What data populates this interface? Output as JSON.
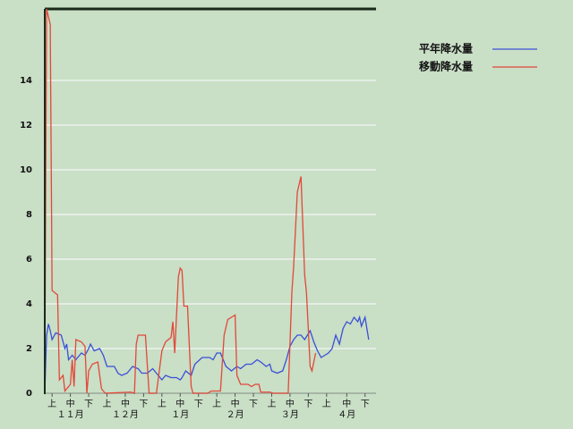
{
  "chart_data": {
    "type": "line",
    "xlim": [
      0,
      181
    ],
    "ylim": [
      0,
      17.2
    ],
    "yticks": [
      0,
      2,
      4,
      6,
      8,
      10,
      12,
      14
    ],
    "xticks": [
      {
        "value": 4,
        "label": "上"
      },
      {
        "value": 14,
        "label": "中"
      },
      {
        "value": 24,
        "label": "下"
      },
      {
        "value": 34,
        "label": "上"
      },
      {
        "value": 44,
        "label": "中"
      },
      {
        "value": 54,
        "label": "下"
      },
      {
        "value": 64,
        "label": "上"
      },
      {
        "value": 74,
        "label": "中"
      },
      {
        "value": 84,
        "label": "下"
      },
      {
        "value": 94,
        "label": "上"
      },
      {
        "value": 104,
        "label": "中"
      },
      {
        "value": 114,
        "label": "下"
      },
      {
        "value": 124,
        "label": "上"
      },
      {
        "value": 134,
        "label": "中"
      },
      {
        "value": 144,
        "label": "下"
      },
      {
        "value": 154,
        "label": "上"
      },
      {
        "value": 165,
        "label": "中"
      },
      {
        "value": 175,
        "label": "下"
      }
    ],
    "month_ticks": [
      {
        "value": 14,
        "label": "１１月"
      },
      {
        "value": 44,
        "label": "１２月"
      },
      {
        "value": 74,
        "label": "１月"
      },
      {
        "value": 104,
        "label": "２月"
      },
      {
        "value": 134,
        "label": "３月"
      },
      {
        "value": 165,
        "label": "４月"
      }
    ],
    "grid": true,
    "legend": "right",
    "series": [
      {
        "name": "平年降水量",
        "color": "#3b4fd6",
        "x": [
          0,
          1,
          2,
          3,
          4,
          6,
          9,
          11,
          12,
          13,
          15,
          17,
          20,
          22,
          24,
          25,
          27,
          30,
          32,
          34,
          38,
          40,
          42,
          45,
          48,
          51,
          53,
          56,
          59,
          62,
          64,
          66,
          69,
          72,
          74,
          75,
          77,
          80,
          82,
          86,
          90,
          92,
          94,
          96,
          99,
          102,
          105,
          107,
          110,
          113,
          116,
          118,
          121,
          123,
          124,
          127,
          130,
          132,
          134,
          136,
          138,
          140,
          142,
          145,
          147,
          149,
          151,
          153,
          155,
          157,
          159,
          161,
          163,
          165,
          167,
          169,
          171,
          172,
          173,
          175,
          177
        ],
        "values": [
          0,
          2.6,
          3.1,
          2.8,
          2.4,
          2.7,
          2.6,
          2.0,
          2.2,
          1.5,
          1.7,
          1.5,
          1.8,
          1.7,
          2.0,
          2.2,
          1.9,
          2.0,
          1.7,
          1.2,
          1.2,
          0.9,
          0.8,
          0.9,
          1.2,
          1.1,
          0.9,
          0.9,
          1.1,
          0.8,
          0.6,
          0.8,
          0.7,
          0.7,
          0.6,
          0.7,
          1.0,
          0.8,
          1.3,
          1.6,
          1.6,
          1.5,
          1.8,
          1.8,
          1.2,
          1.0,
          1.2,
          1.1,
          1.3,
          1.3,
          1.5,
          1.4,
          1.2,
          1.3,
          1.0,
          0.9,
          1.0,
          1.5,
          2.1,
          2.4,
          2.6,
          2.6,
          2.4,
          2.8,
          2.3,
          1.9,
          1.6,
          1.7,
          1.8,
          2.0,
          2.6,
          2.2,
          2.9,
          3.2,
          3.1,
          3.4,
          3.2,
          3.4,
          3.0,
          3.4,
          2.4
        ]
      },
      {
        "name": "移動降水量",
        "color": "#e2483a",
        "x": [
          0,
          1,
          3,
          4,
          7,
          8,
          10,
          11,
          14,
          15,
          16,
          17,
          20,
          22,
          23,
          24,
          26,
          29,
          31,
          33,
          47,
          49,
          50,
          51,
          55,
          57,
          61,
          64,
          66,
          69,
          70,
          71,
          73,
          74,
          75,
          76,
          78,
          80,
          81,
          89,
          91,
          96,
          98,
          100,
          104,
          105,
          107,
          111,
          113,
          115,
          117,
          118,
          123,
          125,
          133,
          135,
          136,
          138,
          140,
          142,
          143,
          145,
          146,
          148
        ],
        "values": [
          0,
          17.2,
          16.5,
          4.6,
          4.4,
          0.6,
          0.8,
          0.1,
          0.4,
          1.5,
          0.3,
          2.4,
          2.3,
          2.1,
          0,
          1.0,
          1.3,
          1.4,
          0.2,
          0,
          0.05,
          0,
          2.2,
          2.6,
          2.6,
          0,
          0,
          1.9,
          2.3,
          2.5,
          3.2,
          1.8,
          5.2,
          5.6,
          5.5,
          3.9,
          3.9,
          0.3,
          0,
          0,
          0.1,
          0.1,
          2.6,
          3.3,
          3.5,
          0.8,
          0.4,
          0.4,
          0.3,
          0.4,
          0.4,
          0.05,
          0.05,
          0,
          0,
          4.5,
          5.7,
          9.0,
          9.7,
          5.3,
          4.5,
          1.2,
          1.0,
          1.8
        ]
      }
    ]
  }
}
